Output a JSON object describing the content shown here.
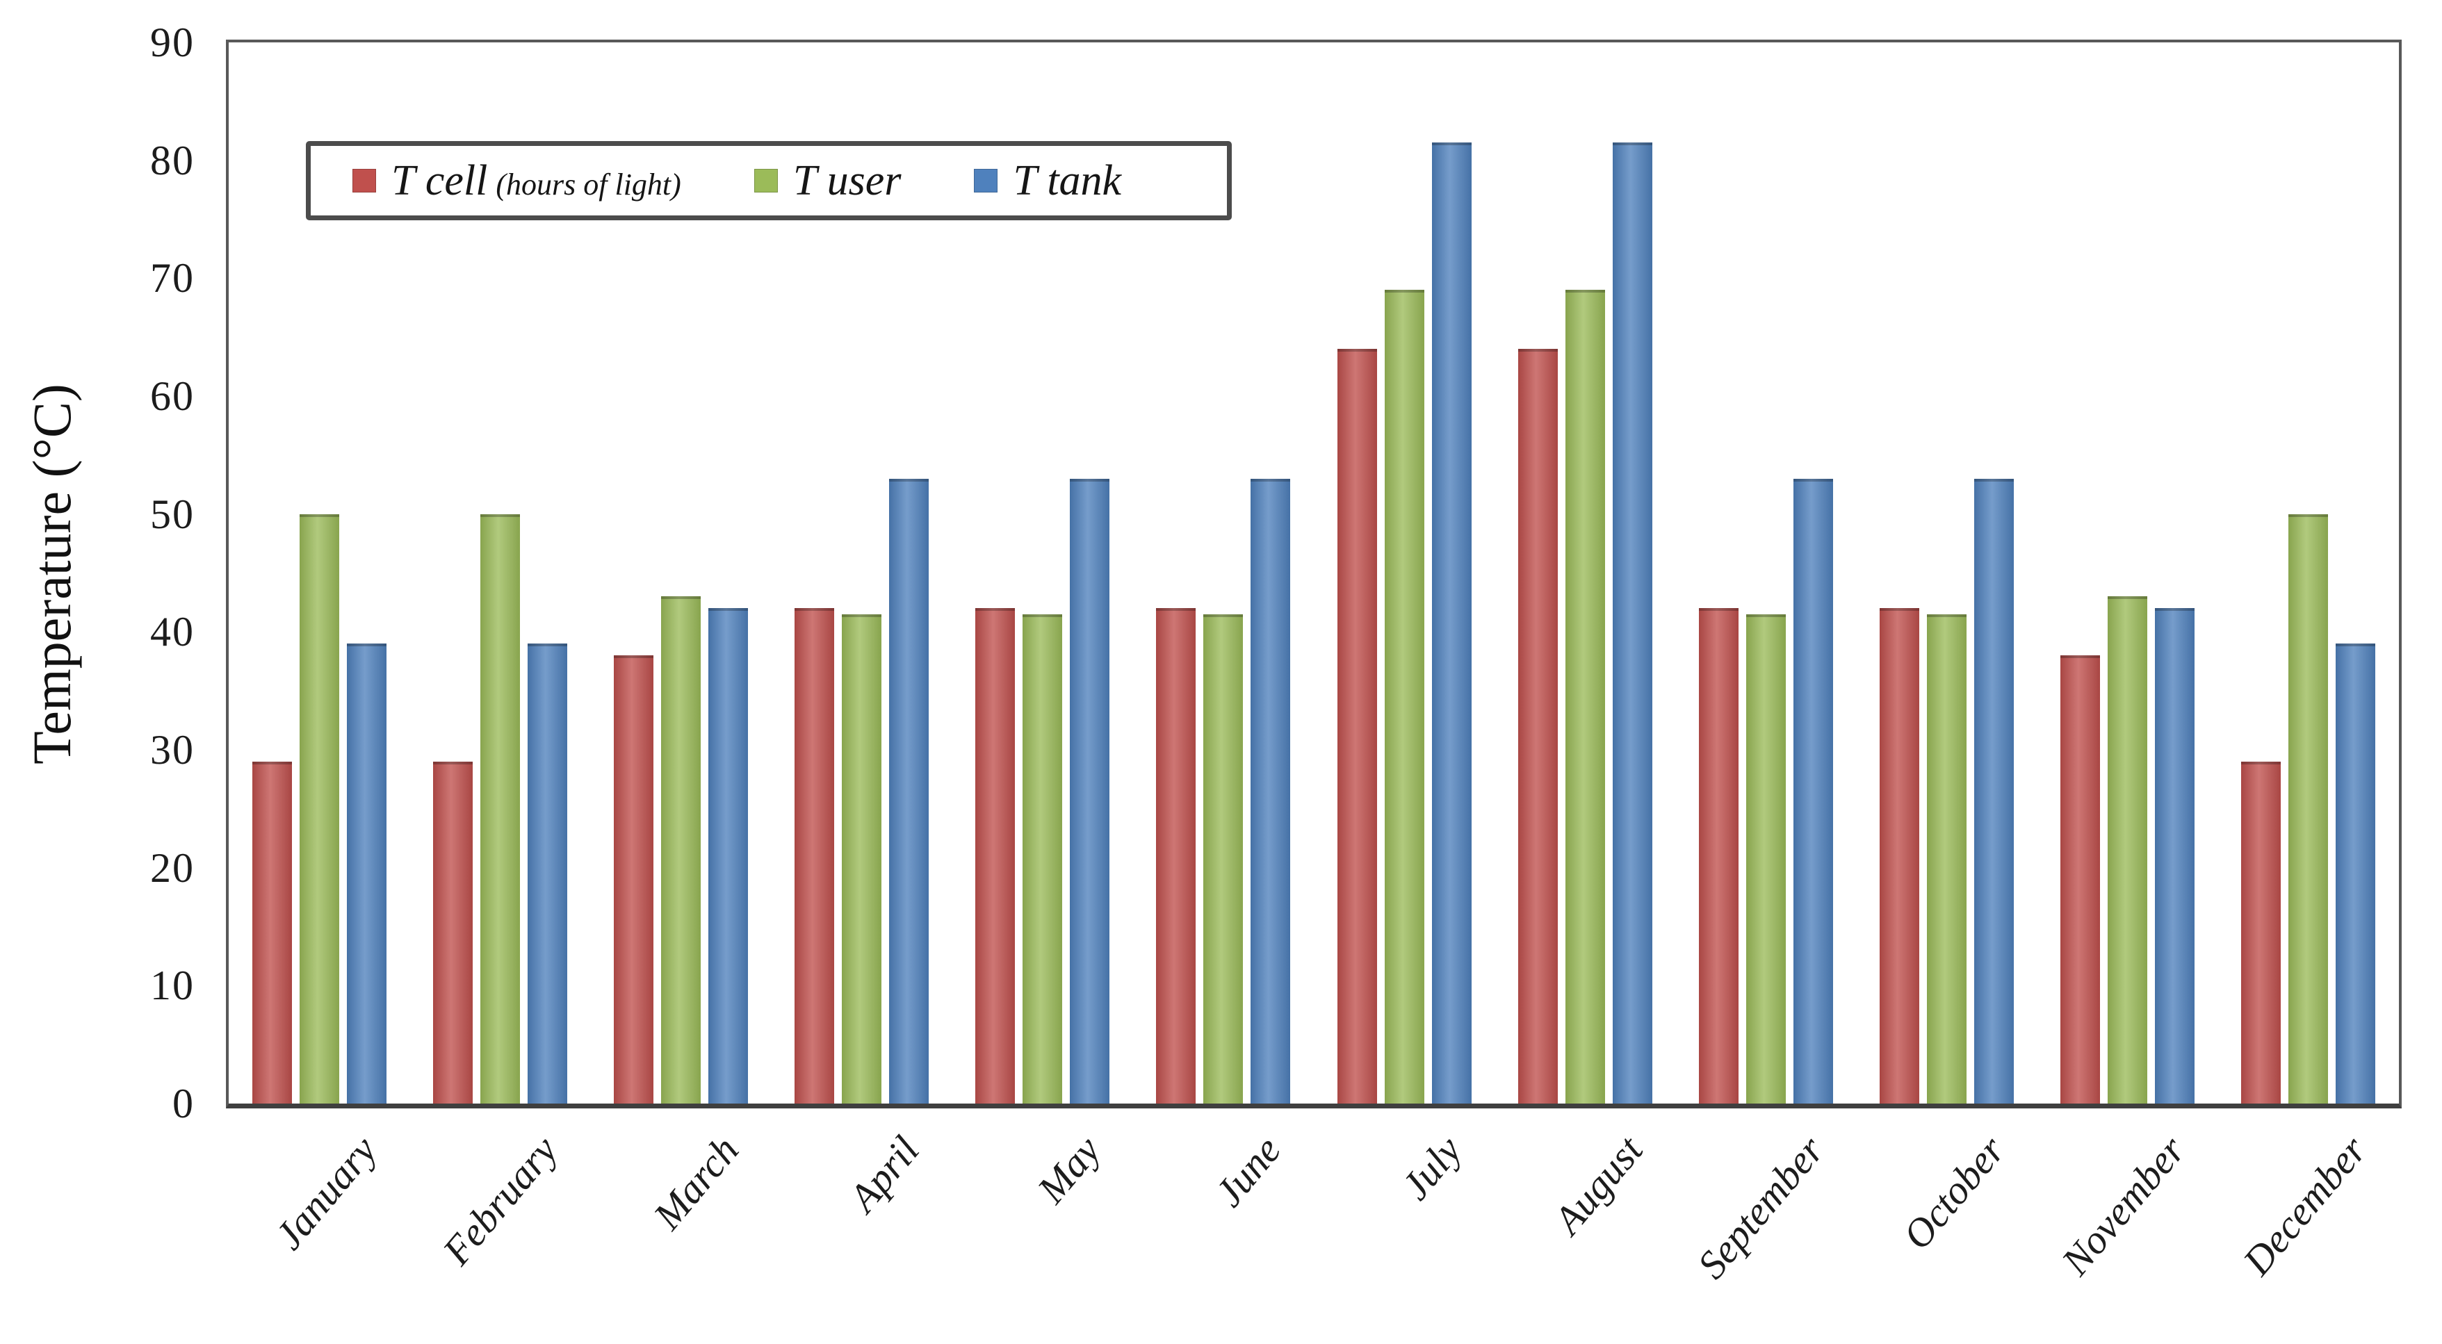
{
  "chart_data": {
    "type": "bar",
    "title": "",
    "xlabel": "",
    "ylabel": "Temperature (°C)",
    "ylim": [
      0,
      90
    ],
    "yticks": [
      0,
      10,
      20,
      30,
      40,
      50,
      60,
      70,
      80,
      90
    ],
    "grid": false,
    "legend_position": "top-left",
    "categories": [
      "January",
      "February",
      "March",
      "April",
      "May",
      "June",
      "July",
      "August",
      "September",
      "October",
      "November",
      "December"
    ],
    "series": [
      {
        "name": "T cell (hours of light)",
        "legend_main": "T cell",
        "legend_suffix": "(hours of light)",
        "color": "#c0504d",
        "values": [
          29,
          29,
          38,
          42,
          42,
          42,
          64,
          64,
          42,
          42,
          38,
          29
        ]
      },
      {
        "name": "T user",
        "legend_main": "T user",
        "legend_suffix": "",
        "color": "#9bbb59",
        "values": [
          50,
          50,
          43,
          41.5,
          41.5,
          41.5,
          69,
          69,
          41.5,
          41.5,
          43,
          50
        ]
      },
      {
        "name": "T tank",
        "legend_main": "T tank",
        "legend_suffix": "",
        "color": "#4f81bd",
        "values": [
          39,
          39,
          42,
          53,
          53,
          53,
          81.5,
          81.5,
          53,
          53,
          42,
          39
        ]
      }
    ]
  }
}
